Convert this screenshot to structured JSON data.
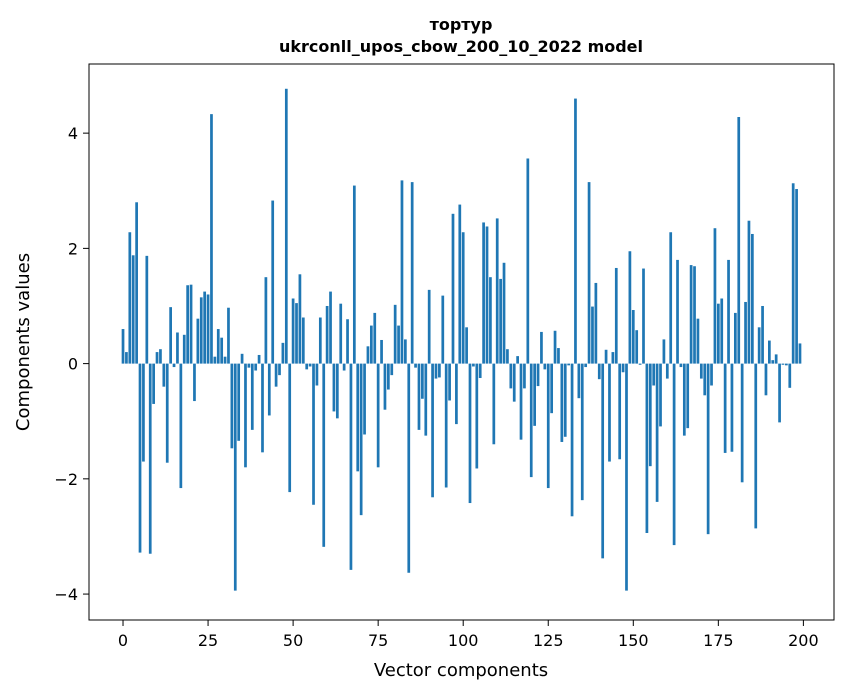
{
  "chart_data": {
    "type": "bar",
    "title": "тортур",
    "subtitle": "ukrconll_upos_cbow_200_10_2022 model",
    "xlabel": "Vector components",
    "ylabel": "Components values",
    "xlim": [
      -10,
      209
    ],
    "ylim": [
      -4.45,
      5.2
    ],
    "xticks": [
      0,
      25,
      50,
      75,
      100,
      125,
      150,
      175,
      200
    ],
    "xtick_labels": [
      "0",
      "25",
      "50",
      "75",
      "100",
      "125",
      "150",
      "175",
      "200"
    ],
    "yticks": [
      -4,
      -2,
      0,
      2,
      4
    ],
    "ytick_labels": [
      "−4",
      "−2",
      "0",
      "2",
      "4"
    ],
    "grid": false,
    "bar_color": "#1f77b4",
    "x": [
      0,
      1,
      2,
      3,
      4,
      5,
      6,
      7,
      8,
      9,
      10,
      11,
      12,
      13,
      14,
      15,
      16,
      17,
      18,
      19,
      20,
      21,
      22,
      23,
      24,
      25,
      26,
      27,
      28,
      29,
      30,
      31,
      32,
      33,
      34,
      35,
      36,
      37,
      38,
      39,
      40,
      41,
      42,
      43,
      44,
      45,
      46,
      47,
      48,
      49,
      50,
      51,
      52,
      53,
      54,
      55,
      56,
      57,
      58,
      59,
      60,
      61,
      62,
      63,
      64,
      65,
      66,
      67,
      68,
      69,
      70,
      71,
      72,
      73,
      74,
      75,
      76,
      77,
      78,
      79,
      80,
      81,
      82,
      83,
      84,
      85,
      86,
      87,
      88,
      89,
      90,
      91,
      92,
      93,
      94,
      95,
      96,
      97,
      98,
      99,
      100,
      101,
      102,
      103,
      104,
      105,
      106,
      107,
      108,
      109,
      110,
      111,
      112,
      113,
      114,
      115,
      116,
      117,
      118,
      119,
      120,
      121,
      122,
      123,
      124,
      125,
      126,
      127,
      128,
      129,
      130,
      131,
      132,
      133,
      134,
      135,
      136,
      137,
      138,
      139,
      140,
      141,
      142,
      143,
      144,
      145,
      146,
      147,
      148,
      149,
      150,
      151,
      152,
      153,
      154,
      155,
      156,
      157,
      158,
      159,
      160,
      161,
      162,
      163,
      164,
      165,
      166,
      167,
      168,
      169,
      170,
      171,
      172,
      173,
      174,
      175,
      176,
      177,
      178,
      179,
      180,
      181,
      182,
      183,
      184,
      185,
      186,
      187,
      188,
      189,
      190,
      191,
      192,
      193,
      194,
      195,
      196,
      197,
      198,
      199
    ],
    "values": [
      0.6,
      0.2,
      2.28,
      1.88,
      2.8,
      -3.28,
      -1.7,
      1.87,
      -3.3,
      -0.7,
      0.2,
      0.25,
      -0.4,
      -1.72,
      0.98,
      -0.06,
      0.54,
      -2.16,
      0.5,
      1.36,
      1.37,
      -0.65,
      0.78,
      1.15,
      1.25,
      1.2,
      4.33,
      0.12,
      0.6,
      0.45,
      0.12,
      0.97,
      -1.47,
      -3.94,
      -1.34,
      0.17,
      -1.8,
      -0.07,
      -1.15,
      -0.12,
      0.15,
      -1.54,
      1.5,
      -0.9,
      2.83,
      -0.4,
      -0.2,
      0.36,
      4.77,
      -2.23,
      1.13,
      1.05,
      1.55,
      0.8,
      -0.1,
      -0.05,
      -2.45,
      -0.38,
      0.8,
      -3.18,
      1.0,
      1.25,
      -0.83,
      -0.95,
      1.04,
      -0.12,
      0.77,
      -3.58,
      3.09,
      -1.87,
      -2.63,
      -1.23,
      0.3,
      0.66,
      0.88,
      -1.8,
      0.41,
      -0.8,
      -0.45,
      -0.2,
      1.02,
      0.66,
      3.18,
      0.42,
      -3.63,
      3.15,
      -0.07,
      -1.15,
      -0.61,
      -1.25,
      1.28,
      -2.32,
      -0.26,
      -0.24,
      1.18,
      -2.15,
      -0.64,
      2.6,
      -1.05,
      2.76,
      2.28,
      0.63,
      -2.42,
      -0.05,
      -1.82,
      -0.25,
      2.45,
      2.38,
      1.5,
      -1.4,
      2.52,
      1.47,
      1.75,
      0.25,
      -0.43,
      -0.66,
      0.13,
      -1.32,
      -0.43,
      3.56,
      -1.97,
      -1.08,
      -0.39,
      0.55,
      -0.1,
      -2.16,
      -0.86,
      0.57,
      0.27,
      -1.36,
      -1.27,
      -0.03,
      -2.65,
      4.6,
      -0.6,
      -2.37,
      -0.06,
      3.15,
      0.99,
      1.4,
      -0.27,
      -3.38,
      0.24,
      -1.7,
      0.2,
      1.66,
      -1.66,
      -0.15,
      -3.94,
      1.95,
      0.93,
      0.58,
      -0.02,
      1.65,
      -2.94,
      -1.78,
      -0.38,
      -2.4,
      -1.09,
      0.42,
      -0.26,
      2.28,
      -3.15,
      1.8,
      -0.06,
      -1.25,
      -1.12,
      1.71,
      1.69,
      0.78,
      -0.26,
      -0.55,
      -2.96,
      -0.38,
      2.35,
      1.04,
      1.13,
      -1.55,
      1.8,
      -1.53,
      0.88,
      4.28,
      -2.06,
      1.07,
      2.48,
      2.25,
      -2.86,
      0.63,
      1.0,
      -0.55,
      0.4,
      0.06,
      0.16,
      -1.02,
      -0.02,
      -0.03,
      -0.42,
      3.13,
      3.03,
      0.35
    ]
  }
}
